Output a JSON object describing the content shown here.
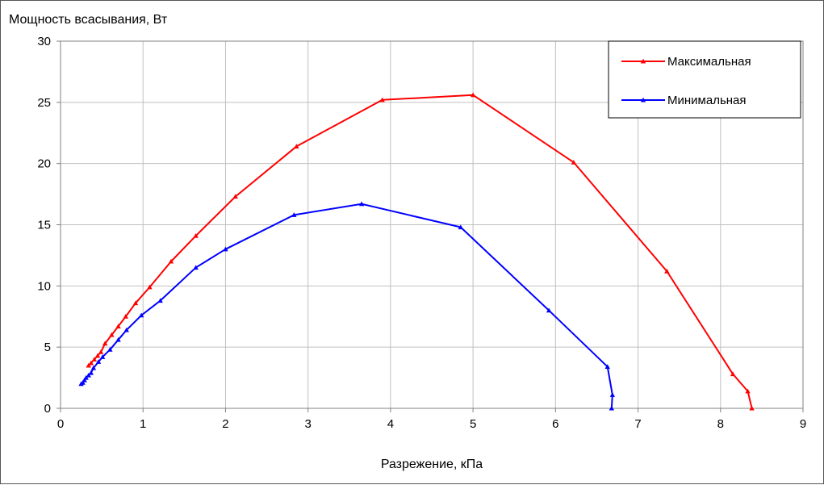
{
  "chart_data": {
    "type": "line",
    "title": "",
    "ylabel": "Мощность всасывания, Вт",
    "xlabel": "Разрежение, кПа",
    "xlim": [
      0,
      9
    ],
    "ylim": [
      0,
      30
    ],
    "xticks": [
      0,
      1,
      2,
      3,
      4,
      5,
      6,
      7,
      8,
      9
    ],
    "yticks": [
      0,
      5,
      10,
      15,
      20,
      25,
      30
    ],
    "grid": true,
    "legend_position": "top-right",
    "series": [
      {
        "name": "Максимальная",
        "color": "#ff0000",
        "marker": "triangle",
        "points": [
          [
            0.34,
            3.5
          ],
          [
            0.37,
            3.7
          ],
          [
            0.41,
            4.0
          ],
          [
            0.45,
            4.3
          ],
          [
            0.49,
            4.6
          ],
          [
            0.54,
            5.3
          ],
          [
            0.62,
            6.0
          ],
          [
            0.7,
            6.7
          ],
          [
            0.79,
            7.5
          ],
          [
            0.91,
            8.6
          ],
          [
            1.08,
            9.9
          ],
          [
            1.34,
            12.0
          ],
          [
            1.64,
            14.1
          ],
          [
            2.12,
            17.3
          ],
          [
            2.86,
            21.4
          ],
          [
            3.9,
            25.2
          ],
          [
            5.0,
            25.6
          ],
          [
            6.22,
            20.1
          ],
          [
            7.35,
            11.2
          ],
          [
            8.15,
            2.8
          ],
          [
            8.33,
            1.4
          ],
          [
            8.38,
            0.0
          ]
        ]
      },
      {
        "name": "Минимальная",
        "color": "#0000ff",
        "marker": "triangle",
        "points": [
          [
            0.25,
            2.0
          ],
          [
            0.27,
            2.1
          ],
          [
            0.29,
            2.3
          ],
          [
            0.31,
            2.5
          ],
          [
            0.34,
            2.7
          ],
          [
            0.37,
            2.9
          ],
          [
            0.4,
            3.3
          ],
          [
            0.46,
            3.8
          ],
          [
            0.51,
            4.2
          ],
          [
            0.6,
            4.8
          ],
          [
            0.7,
            5.6
          ],
          [
            0.8,
            6.4
          ],
          [
            0.98,
            7.6
          ],
          [
            1.21,
            8.8
          ],
          [
            1.64,
            11.5
          ],
          [
            2.0,
            13.0
          ],
          [
            2.83,
            15.8
          ],
          [
            3.65,
            16.7
          ],
          [
            4.85,
            14.8
          ],
          [
            5.92,
            8.0
          ],
          [
            6.63,
            3.4
          ],
          [
            6.69,
            1.1
          ],
          [
            6.68,
            0.0
          ]
        ]
      }
    ]
  }
}
